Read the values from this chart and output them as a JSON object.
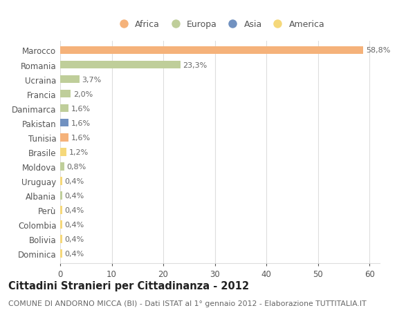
{
  "categories": [
    "Marocco",
    "Romania",
    "Ucraina",
    "Francia",
    "Danimarca",
    "Pakistan",
    "Tunisia",
    "Brasile",
    "Moldova",
    "Uruguay",
    "Albania",
    "Perù",
    "Colombia",
    "Bolivia",
    "Dominica"
  ],
  "values": [
    58.8,
    23.3,
    3.7,
    2.0,
    1.6,
    1.6,
    1.6,
    1.2,
    0.8,
    0.4,
    0.4,
    0.4,
    0.4,
    0.4,
    0.4
  ],
  "labels": [
    "58,8%",
    "23,3%",
    "3,7%",
    "2,0%",
    "1,6%",
    "1,6%",
    "1,6%",
    "1,2%",
    "0,8%",
    "0,4%",
    "0,4%",
    "0,4%",
    "0,4%",
    "0,4%",
    "0,4%"
  ],
  "continent": [
    "Africa",
    "Europa",
    "Europa",
    "Europa",
    "Europa",
    "Asia",
    "Africa",
    "America",
    "Europa",
    "America",
    "Europa",
    "America",
    "America",
    "America",
    "America"
  ],
  "colors": {
    "Africa": "#F5B27A",
    "Europa": "#BFCE9A",
    "Asia": "#7191C0",
    "America": "#F5D87A"
  },
  "legend_order": [
    "Africa",
    "Europa",
    "Asia",
    "America"
  ],
  "legend_colors": [
    "#F5B27A",
    "#BFCE9A",
    "#7191C0",
    "#F5D87A"
  ],
  "xlim": [
    0,
    62
  ],
  "xticks": [
    0,
    10,
    20,
    30,
    40,
    50,
    60
  ],
  "title": "Cittadini Stranieri per Cittadinanza - 2012",
  "subtitle": "COMUNE DI ANDORNO MICCA (BI) - Dati ISTAT al 1° gennaio 2012 - Elaborazione TUTTITALIA.IT",
  "bg_color": "#FFFFFF",
  "grid_color": "#DDDDDD",
  "bar_height": 0.55,
  "label_fontsize": 8,
  "ytick_fontsize": 8.5,
  "xtick_fontsize": 8.5,
  "title_fontsize": 10.5,
  "subtitle_fontsize": 7.8
}
